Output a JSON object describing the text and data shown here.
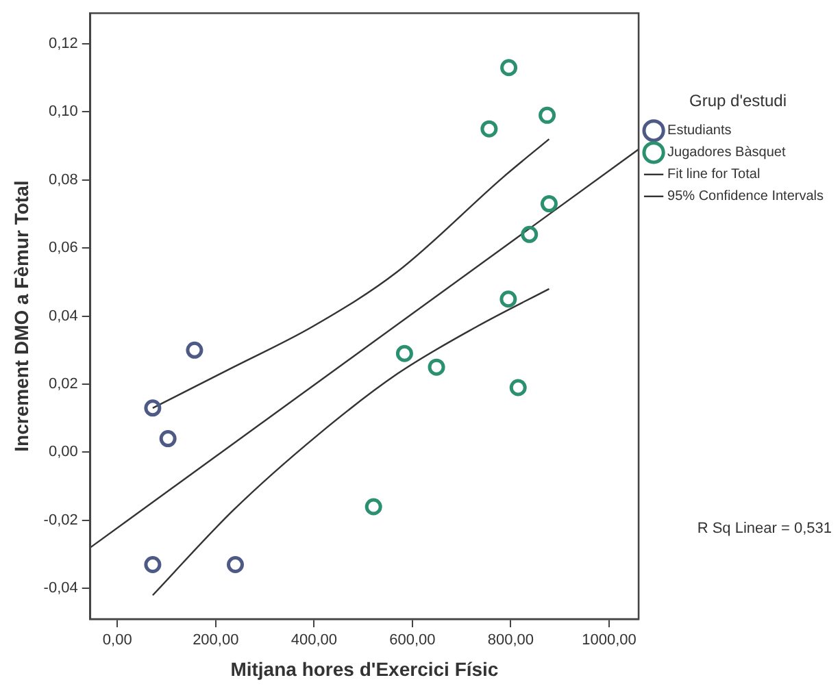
{
  "chart_data": {
    "type": "scatter",
    "xlabel": "Mitjana hores d'Exercici Físic",
    "ylabel": "Increment DMO a Fèmur Total",
    "legend_title": "Grup d'estudi",
    "legend": "right",
    "grid": false,
    "xlim": [
      -55,
      1060
    ],
    "xticks": [
      {
        "value": 0,
        "label": "0,00"
      },
      {
        "value": 200,
        "label": "200,00"
      },
      {
        "value": 400,
        "label": "400,00"
      },
      {
        "value": 600,
        "label": "600,00"
      },
      {
        "value": 800,
        "label": "800,00"
      },
      {
        "value": 1000,
        "label": "1000,00"
      }
    ],
    "ylim": [
      -0.049,
      0.129
    ],
    "yticks": [
      {
        "value": -0.04,
        "label": "-0,04"
      },
      {
        "value": -0.02,
        "label": "-0,02"
      },
      {
        "value": 0,
        "label": "0,00"
      },
      {
        "value": 0.02,
        "label": "0,02"
      },
      {
        "value": 0.04,
        "label": "0,04"
      },
      {
        "value": 0.06,
        "label": "0,06"
      },
      {
        "value": 0.08,
        "label": "0,08"
      },
      {
        "value": 0.1,
        "label": "0,10"
      },
      {
        "value": 0.12,
        "label": "0,12"
      }
    ],
    "series": [
      {
        "name": "Estudiants",
        "marker": "circle",
        "color": "#4d5a86",
        "x": [
          72,
          103,
          157,
          72,
          240
        ],
        "values": [
          0.013,
          0.004,
          0.03,
          -0.033,
          -0.033
        ]
      },
      {
        "name": "Jugadores Bàsquet",
        "marker": "circle",
        "color": "#2a9070",
        "x": [
          521,
          584,
          649,
          815,
          795,
          756,
          796,
          874,
          878,
          838
        ],
        "values": [
          -0.016,
          0.029,
          0.025,
          0.019,
          0.045,
          0.095,
          0.113,
          0.099,
          0.073,
          0.064
        ]
      },
      {
        "name": "Fit line for Total",
        "type": "line",
        "marker": "none",
        "color": "#333333",
        "x": [
          -55,
          1060
        ],
        "values": [
          -0.028,
          0.089
        ]
      },
      {
        "name": "95% Confidence Intervals",
        "type": "line",
        "marker": "none",
        "color": "#333333",
        "x": [
          72,
          236,
          398,
          569,
          786,
          878
        ],
        "values": [
          0.013,
          0.025,
          0.037,
          0.053,
          0.081,
          0.092
        ]
      },
      {
        "type": "line",
        "marker": "none",
        "color": "#333333",
        "x": [
          72,
          236,
          407,
          569,
          732,
          878
        ],
        "values": [
          -0.042,
          -0.017,
          0.005,
          0.023,
          0.037,
          0.048
        ]
      }
    ],
    "annotations": [
      "R Sq Linear = 0,531"
    ]
  }
}
